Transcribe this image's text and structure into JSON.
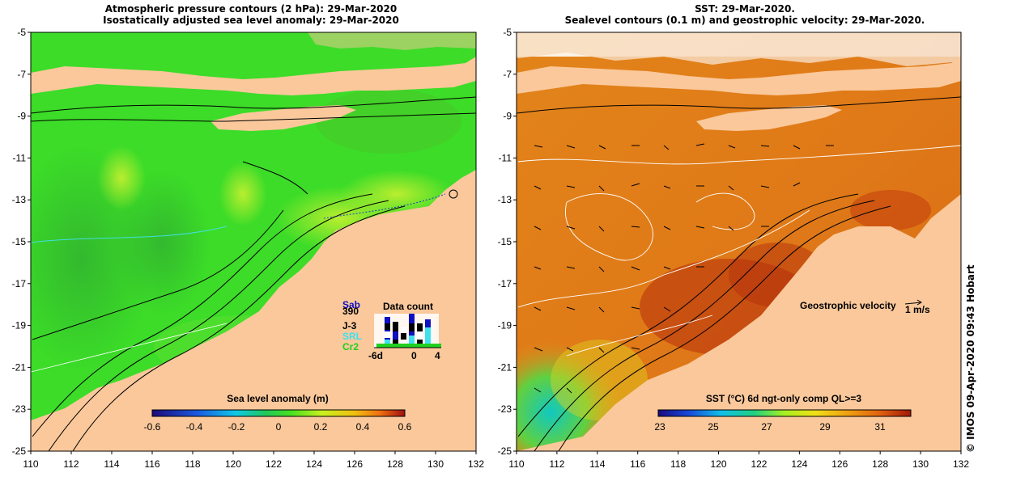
{
  "left_panel": {
    "title_line1": "Atmospheric pressure contours (2 hPa): 29-Mar-2020",
    "title_line2": "Isostatically adjusted sea level anomaly: 29-Mar-2020",
    "colorbar_label": "Sea level anomaly (m)",
    "colorbar_ticks": [
      "-0.6",
      "-0.4",
      "-0.2",
      "0",
      "0.2",
      "0.4",
      "0.6"
    ],
    "data_count": {
      "title": "Data count",
      "satellites": [
        {
          "name": "Sab",
          "color": "#1010c0"
        },
        {
          "name": "390",
          "color": "#000000"
        },
        {
          "name": "J-3",
          "color": "#000000"
        },
        {
          "name": "SRL",
          "color": "#40e0f0"
        },
        {
          "name": "Cr2",
          "color": "#20d020"
        }
      ],
      "axis_ticks": [
        "-6d",
        "0",
        "4"
      ]
    }
  },
  "right_panel": {
    "title_line1": "SST: 29-Mar-2020.",
    "title_line2": "Sealevel contours (0.1 m) and geostrophic velocity: 29-Mar-2020.",
    "colorbar_label": "SST (°C) 6d ngt-only comp QL>=3",
    "colorbar_ticks": [
      "23",
      "25",
      "27",
      "29",
      "31"
    ],
    "velocity_label": "Geostrophic velocity",
    "velocity_scale": "1 m/s"
  },
  "axes": {
    "lon_ticks": [
      "110",
      "112",
      "114",
      "116",
      "118",
      "120",
      "122",
      "124",
      "126",
      "128",
      "130",
      "132"
    ],
    "lat_ticks": [
      "-5",
      "-7",
      "-9",
      "-11",
      "-13",
      "-15",
      "-17",
      "-19",
      "-21",
      "-23",
      "-25"
    ]
  },
  "credit": "© IMOS 09-Apr-2020 09:43 Hobart",
  "colors": {
    "land": "#fac89b",
    "sla_green": "#3cdc28",
    "sst_orange": "#e68a14",
    "sst_red": "#b4280a"
  }
}
